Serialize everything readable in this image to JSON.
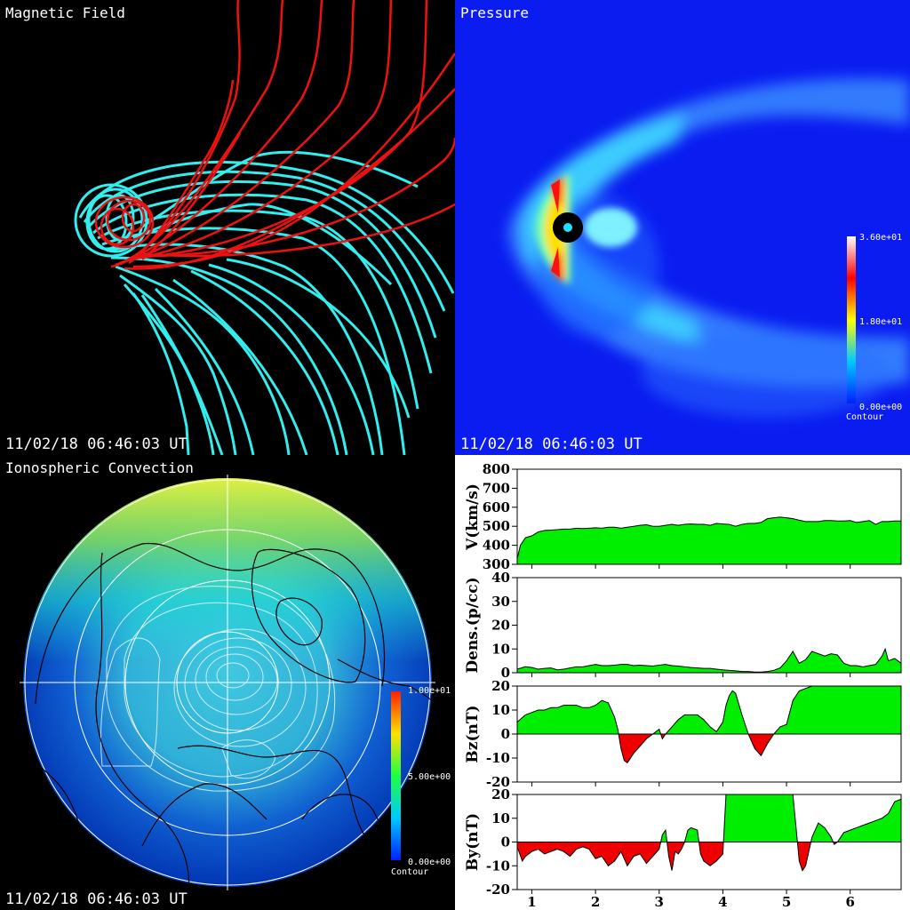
{
  "panels": {
    "magnetic": {
      "title": "Magnetic Field",
      "timestamp": "11/02/18 06:46:03 UT"
    },
    "pressure": {
      "title": "Pressure",
      "timestamp": "11/02/18 06:46:03 UT",
      "colorbar": {
        "max": "3.60e+01",
        "mid": "1.80e+01",
        "min": "0.00e+00",
        "label": "Contour"
      }
    },
    "ionosphere": {
      "title": "Ionospheric Convection",
      "timestamp": "11/02/18 06:46:03 UT",
      "colorbar": {
        "max": "1.00e+01",
        "mid": "5.00e+00",
        "min": "0.00e+00",
        "label": "Contour"
      }
    }
  },
  "colors": {
    "positive": "#00ee00",
    "negative": "#ee0000",
    "field_open": "#ee1111",
    "field_closed": "#33eeee"
  },
  "chart_data": [
    {
      "type": "area",
      "ylabel": "V(km/s)",
      "ylim": [
        300,
        800
      ],
      "yticks": [
        300,
        400,
        500,
        600,
        700,
        800
      ],
      "x": [
        0.77,
        0.82,
        0.9,
        1.0,
        1.1,
        1.2,
        1.3,
        1.4,
        1.5,
        1.6,
        1.7,
        1.8,
        1.9,
        2.0,
        2.1,
        2.2,
        2.3,
        2.4,
        2.5,
        2.6,
        2.7,
        2.8,
        2.9,
        3.0,
        3.1,
        3.2,
        3.3,
        3.4,
        3.5,
        3.6,
        3.7,
        3.8,
        3.9,
        4.0,
        4.1,
        4.2,
        4.3,
        4.4,
        4.5,
        4.6,
        4.7,
        4.8,
        4.9,
        5.0,
        5.1,
        5.2,
        5.3,
        5.4,
        5.5,
        5.6,
        5.7,
        5.8,
        5.9,
        6.0,
        6.1,
        6.2,
        6.3,
        6.4,
        6.5,
        6.6,
        6.7,
        6.8
      ],
      "values": [
        330,
        400,
        440,
        450,
        470,
        478,
        480,
        482,
        485,
        485,
        490,
        488,
        490,
        492,
        490,
        495,
        495,
        490,
        495,
        500,
        505,
        508,
        500,
        500,
        505,
        510,
        505,
        510,
        512,
        510,
        510,
        505,
        515,
        512,
        510,
        500,
        510,
        515,
        515,
        520,
        540,
        545,
        548,
        545,
        540,
        532,
        525,
        525,
        525,
        530,
        530,
        528,
        528,
        530,
        520,
        525,
        530,
        510,
        525,
        525,
        528,
        528
      ]
    },
    {
      "type": "area",
      "ylabel": "Dens.(p/cc)",
      "ylim": [
        0,
        40
      ],
      "yticks": [
        0,
        10,
        20,
        30,
        40
      ],
      "x": [
        0.77,
        0.9,
        1.0,
        1.1,
        1.2,
        1.3,
        1.4,
        1.5,
        1.6,
        1.7,
        1.8,
        1.9,
        2.0,
        2.1,
        2.2,
        2.3,
        2.4,
        2.5,
        2.6,
        2.7,
        2.8,
        2.9,
        3.0,
        3.1,
        3.2,
        3.3,
        3.4,
        3.5,
        3.6,
        3.7,
        3.8,
        3.9,
        4.0,
        4.1,
        4.2,
        4.3,
        4.4,
        4.5,
        4.6,
        4.7,
        4.8,
        4.9,
        5.0,
        5.1,
        5.2,
        5.3,
        5.4,
        5.5,
        5.6,
        5.7,
        5.8,
        5.9,
        6.0,
        6.1,
        6.2,
        6.3,
        6.4,
        6.5,
        6.55,
        6.6,
        6.7,
        6.8
      ],
      "values": [
        1.5,
        2.5,
        2.2,
        1.5,
        1.8,
        2.0,
        1.2,
        1.5,
        2.0,
        2.5,
        2.5,
        3.0,
        3.5,
        3.0,
        3.0,
        3.2,
        3.5,
        3.5,
        3.0,
        3.2,
        3.0,
        2.8,
        3.2,
        3.5,
        3.0,
        2.8,
        2.5,
        2.2,
        2.0,
        1.8,
        1.8,
        1.5,
        1.2,
        1.0,
        0.8,
        0.5,
        0.5,
        0.3,
        0.3,
        0.5,
        1.0,
        2.0,
        5.0,
        9.0,
        4.0,
        5.5,
        9.0,
        8.0,
        7.0,
        8.0,
        7.5,
        4.0,
        3.0,
        3.0,
        2.5,
        3.0,
        3.5,
        7.0,
        10.0,
        5.0,
        6.0,
        4.0
      ]
    },
    {
      "type": "area",
      "ylabel": "Bz(nT)",
      "ylim": [
        -20,
        20
      ],
      "yticks": [
        -20,
        -10,
        0,
        10,
        20
      ],
      "x": [
        0.77,
        0.9,
        1.0,
        1.1,
        1.2,
        1.3,
        1.4,
        1.5,
        1.6,
        1.7,
        1.8,
        1.9,
        2.0,
        2.1,
        2.2,
        2.3,
        2.35,
        2.4,
        2.45,
        2.5,
        2.6,
        2.7,
        2.8,
        2.9,
        3.0,
        3.05,
        3.1,
        3.2,
        3.3,
        3.4,
        3.5,
        3.6,
        3.7,
        3.8,
        3.9,
        4.0,
        4.05,
        4.1,
        4.15,
        4.2,
        4.3,
        4.4,
        4.5,
        4.6,
        4.7,
        4.8,
        4.9,
        5.0,
        5.1,
        5.2,
        5.3,
        5.4,
        5.5,
        5.6,
        5.7,
        5.8,
        5.9,
        6.0,
        6.1,
        6.2,
        6.3,
        6.4,
        6.5,
        6.6,
        6.7,
        6.8
      ],
      "values": [
        5,
        8,
        9,
        10,
        10,
        11,
        11,
        12,
        12,
        12,
        11,
        11,
        12,
        14,
        13,
        7,
        2,
        -6,
        -11,
        -12,
        -8,
        -5,
        -2,
        0,
        2,
        -2,
        0,
        3,
        6,
        8,
        8,
        8,
        6,
        3,
        1,
        5,
        12,
        16,
        18,
        17,
        8,
        0,
        -6,
        -9,
        -4,
        0,
        3,
        4,
        14,
        18,
        19,
        20,
        20,
        20,
        20,
        20,
        20,
        20,
        20,
        20,
        20,
        20,
        20,
        20,
        20,
        20
      ]
    },
    {
      "type": "area",
      "ylabel": "By(nT)",
      "ylim": [
        -20,
        20
      ],
      "yticks": [
        -20,
        -10,
        0,
        10,
        20
      ],
      "xlim": [
        0.77,
        6.8
      ],
      "xticks": [
        1,
        2,
        3,
        4,
        5,
        6
      ],
      "x": [
        0.77,
        0.85,
        0.9,
        1.0,
        1.1,
        1.2,
        1.3,
        1.4,
        1.5,
        1.6,
        1.7,
        1.8,
        1.9,
        2.0,
        2.1,
        2.2,
        2.3,
        2.4,
        2.5,
        2.6,
        2.7,
        2.8,
        2.9,
        3.0,
        3.05,
        3.1,
        3.15,
        3.2,
        3.25,
        3.3,
        3.35,
        3.4,
        3.45,
        3.5,
        3.6,
        3.65,
        3.7,
        3.8,
        3.9,
        4.0,
        4.05,
        4.1,
        4.2,
        4.3,
        4.4,
        4.5,
        4.6,
        4.7,
        4.8,
        4.9,
        5.0,
        5.1,
        5.2,
        5.25,
        5.3,
        5.4,
        5.5,
        5.6,
        5.7,
        5.75,
        5.8,
        5.9,
        6.0,
        6.1,
        6.2,
        6.3,
        6.4,
        6.5,
        6.6,
        6.7,
        6.8
      ],
      "values": [
        -2,
        -8,
        -6,
        -4,
        -3,
        -5,
        -4,
        -3,
        -4,
        -6,
        -3,
        -2,
        -3,
        -7,
        -6,
        -10,
        -8,
        -4,
        -10,
        -6,
        -5,
        -9,
        -6,
        -3,
        3,
        5,
        -6,
        -12,
        -4,
        -5,
        -3,
        0,
        5,
        6,
        5,
        -5,
        -8,
        -10,
        -8,
        -5,
        20,
        20,
        20,
        20,
        20,
        20,
        20,
        20,
        20,
        20,
        20,
        20,
        -8,
        -12,
        -10,
        2,
        8,
        6,
        2,
        -1,
        0,
        4,
        5,
        6,
        7,
        8,
        9,
        10,
        12,
        17,
        18
      ]
    }
  ]
}
